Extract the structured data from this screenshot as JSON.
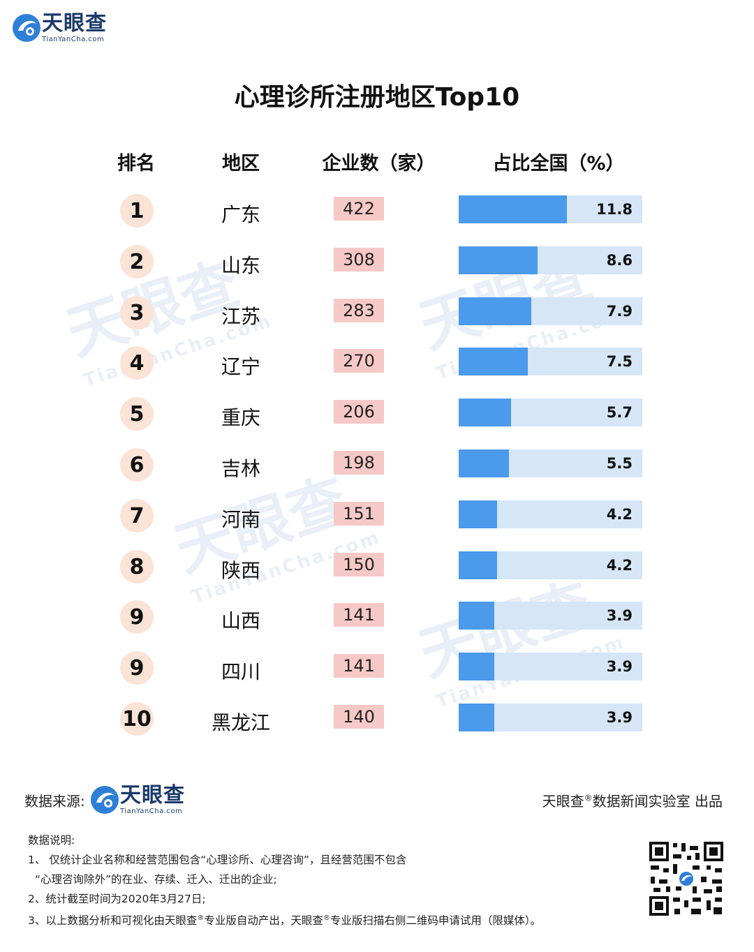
{
  "brand": {
    "name": "天眼查",
    "domain": "TianYanCha.com"
  },
  "title": "心理诊所注册地区Top10",
  "headers": {
    "rank": "排名",
    "region": "地区",
    "count": "企业数（家）",
    "share": "占比全国（%）"
  },
  "chart_data": {
    "type": "table",
    "title": "心理诊所注册地区Top10",
    "columns": [
      "排名",
      "地区",
      "企业数（家）",
      "占比全国（%）"
    ],
    "rows": [
      {
        "rank": "1",
        "region": "广东",
        "count": 422,
        "share": 11.8
      },
      {
        "rank": "2",
        "region": "山东",
        "count": 308,
        "share": 8.6
      },
      {
        "rank": "3",
        "region": "江苏",
        "count": 283,
        "share": 7.9
      },
      {
        "rank": "4",
        "region": "辽宁",
        "count": 270,
        "share": 7.5
      },
      {
        "rank": "5",
        "region": "重庆",
        "count": 206,
        "share": 5.7
      },
      {
        "rank": "6",
        "region": "吉林",
        "count": 198,
        "share": 5.5
      },
      {
        "rank": "7",
        "region": "河南",
        "count": 151,
        "share": 4.2
      },
      {
        "rank": "8",
        "region": "陕西",
        "count": 150,
        "share": 4.2
      },
      {
        "rank": "9",
        "region": "山西",
        "count": 141,
        "share": 3.9
      },
      {
        "rank": "9",
        "region": "四川",
        "count": 141,
        "share": 3.9
      },
      {
        "rank": "10",
        "region": "黑龙江",
        "count": 140,
        "share": 3.9
      }
    ],
    "bar_max": 20
  },
  "footer": {
    "source_label": "数据来源:",
    "producer_prefix": "天眼查",
    "producer_mark": "®",
    "producer_suffix": "数据新闻实验室 出品"
  },
  "notes": {
    "heading": "数据说明:",
    "line1": "1、 仅统计企业名称和经营范围包含“心理诊所、心理咨询”，且经营范围不包含",
    "line1b": "“心理咨询除外”的在业、存续、迁入、迁出的企业;",
    "line2": "2、统计截至时间为2020年3月27日;",
    "line3a": "3、以上数据分析和可视化由天眼查",
    "mark": "®",
    "line3b": "专业版自动产出，天眼查",
    "line3c": "专业版扫描右侧二维码申请试用（限媒体）。"
  },
  "colors": {
    "bar": "#4b9aec",
    "bar_bg": "#d6e6f7",
    "count_bg": "#f6c9c7",
    "rank_bg": "#fbe3d6",
    "brand": "#1b3a6b"
  }
}
